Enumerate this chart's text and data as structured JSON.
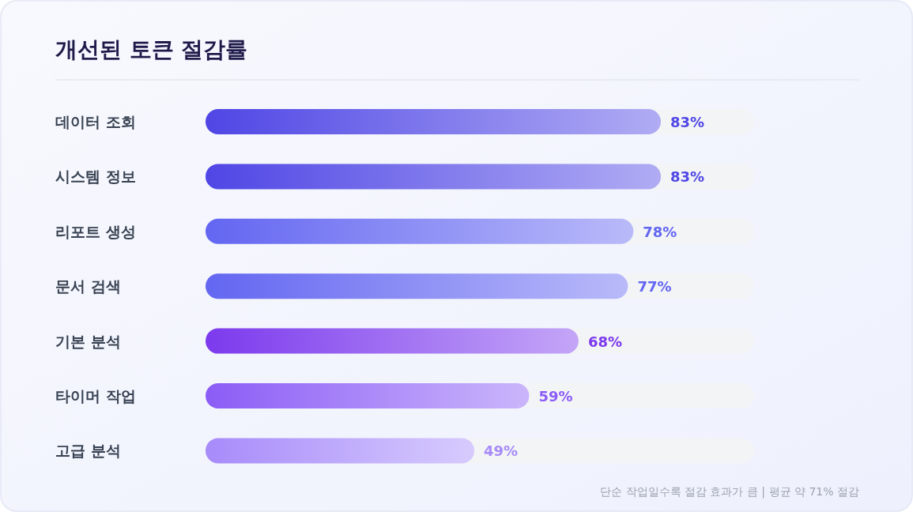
{
  "chart_data": {
    "type": "bar",
    "orientation": "horizontal",
    "title": "개선된 토큰 절감률",
    "categories": [
      "데이터 조회",
      "시스템 정보",
      "리포트 생성",
      "문서 검색",
      "기본 분석",
      "타이머 작업",
      "고급 분석"
    ],
    "values": [
      83,
      83,
      78,
      77,
      68,
      59,
      49
    ],
    "value_labels": [
      "83%",
      "83%",
      "78%",
      "77%",
      "68%",
      "59%",
      "49%"
    ],
    "colors": [
      "#4f46e5",
      "#4f46e5",
      "#6366f1",
      "#6366f1",
      "#7c3aed",
      "#8b5cf6",
      "#a78bfa"
    ],
    "xlim": [
      0,
      100
    ],
    "annotations": [
      "단순 작업일수록 절감 효과가 큼 | 평균 약 71% 절감"
    ]
  }
}
